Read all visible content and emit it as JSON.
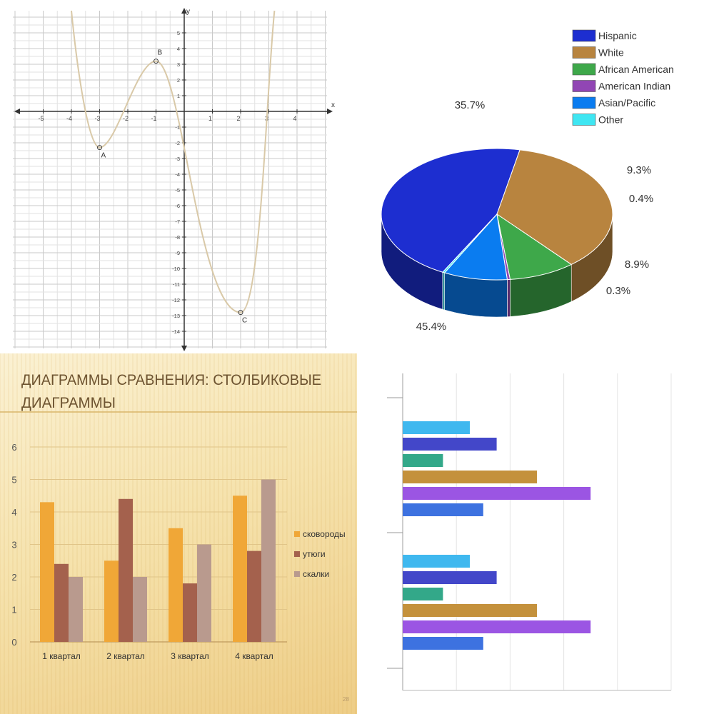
{
  "chart_data": [
    {
      "type": "line",
      "xlabel": "x",
      "ylabel": "y",
      "xlim": [
        -6,
        5
      ],
      "ylim": [
        -15,
        6
      ],
      "x_ticks": [
        "-5",
        "-4",
        "-3",
        "-2",
        "-1",
        "0",
        "1",
        "2",
        "3",
        "4"
      ],
      "y_ticks": [
        "5",
        "4",
        "3",
        "2",
        "1",
        "-1",
        "-2",
        "-3",
        "-4",
        "-5",
        "-6",
        "-7",
        "-8",
        "-9",
        "-10",
        "-11",
        "-12",
        "-13",
        "-14"
      ],
      "grid": true,
      "curve_color": "#d9c9a8",
      "points": [
        {
          "label": "A",
          "x": -3,
          "y": -2.3
        },
        {
          "label": "B",
          "x": -1,
          "y": 3.2
        },
        {
          "label": "C",
          "x": 2,
          "y": -12.8
        }
      ]
    },
    {
      "type": "pie",
      "legend_position": "top-right",
      "series": [
        {
          "name": "Hispanic",
          "value": 45.4,
          "label": "45.4%",
          "color": "#1d2ed0"
        },
        {
          "name": "White",
          "value": 35.7,
          "label": "35.7%",
          "color": "#b8843f"
        },
        {
          "name": "African American",
          "value": 9.3,
          "label": "9.3%",
          "color": "#3ea84a"
        },
        {
          "name": "American Indian",
          "value": 0.4,
          "label": "0.4%",
          "color": "#9146b4"
        },
        {
          "name": "Asian/Pacific",
          "value": 8.9,
          "label": "8.9%",
          "color": "#0a7cf0"
        },
        {
          "name": "Other",
          "value": 0.3,
          "label": "0.3%",
          "color": "#3fe6f2"
        }
      ]
    },
    {
      "type": "bar",
      "title": "ДИАГРАММЫ СРАВНЕНИЯ: СТОЛБИКОВЫЕ ДИАГРАММЫ",
      "title_lines": [
        "ДИАГРАММЫ СРАВНЕНИЯ: СТОЛБИКОВЫЕ",
        "ДИАГРАММЫ"
      ],
      "categories": [
        "1 квартал",
        "2 квартал",
        "3 квартал",
        "4 квартал"
      ],
      "ylim": [
        0,
        6
      ],
      "y_ticks": [
        "0",
        "1",
        "2",
        "3",
        "4",
        "5",
        "6"
      ],
      "legend_position": "right",
      "page_number": "28",
      "series": [
        {
          "name": "сковороды",
          "values": [
            4.3,
            2.5,
            3.5,
            4.5
          ],
          "color": "#f0a737"
        },
        {
          "name": "утюги",
          "values": [
            2.4,
            4.4,
            1.8,
            2.8
          ],
          "color": "#a4614d"
        },
        {
          "name": "скалки",
          "values": [
            2.0,
            2.0,
            3.0,
            5.0
          ],
          "color": "#b99a8e"
        }
      ]
    },
    {
      "type": "bar",
      "orientation": "horizontal",
      "grid": true,
      "groups": [
        {
          "values": [
            25,
            35,
            15,
            50,
            70,
            30
          ]
        },
        {
          "values": [
            25,
            35,
            15,
            50,
            70,
            30
          ]
        }
      ],
      "bar_colors": [
        "#3fb8ef",
        "#4347c9",
        "#33a889",
        "#c4913c",
        "#9b55e3",
        "#3d72e0"
      ]
    }
  ]
}
